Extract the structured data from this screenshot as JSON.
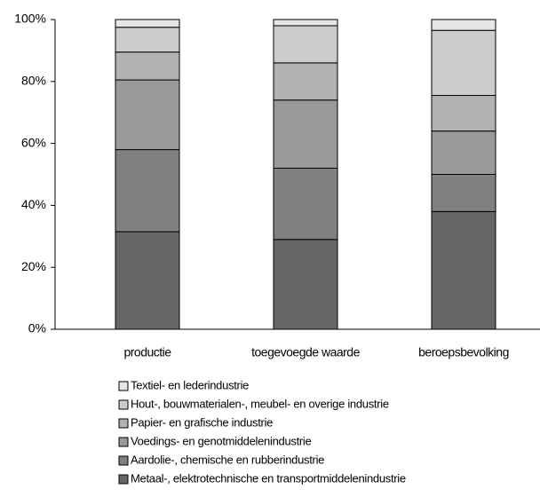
{
  "chart_data": {
    "type": "stacked_bar",
    "categories": [
      "productie",
      "toegevoegde waarde",
      "beroepsbevolking"
    ],
    "series": [
      {
        "name": "Metaal-, elektrotechnische en transportmiddelenindustrie",
        "color": "#666666",
        "values": [
          31.5,
          29,
          38
        ]
      },
      {
        "name": "Aardolie-, chemische en rubberindustrie",
        "color": "#808080",
        "values": [
          26.5,
          23,
          12
        ]
      },
      {
        "name": "Voedings- en genotmiddelenindustrie",
        "color": "#999999",
        "values": [
          22.5,
          22,
          14
        ]
      },
      {
        "name": "Papier- en grafische industrie",
        "color": "#b2b2b2",
        "values": [
          9,
          12,
          11.5
        ]
      },
      {
        "name": "Hout-, bouwmaterialen-, meubel- en overige industrie",
        "color": "#cccccc",
        "values": [
          8,
          12,
          21
        ]
      },
      {
        "name": "Textiel- en lederindustrie",
        "color": "#e6e6e6",
        "values": [
          2.5,
          2,
          3.5
        ]
      }
    ],
    "ylim": [
      0,
      100
    ],
    "yticks": [
      {
        "value": 0,
        "label": "0%"
      },
      {
        "value": 20,
        "label": "20%"
      },
      {
        "value": 40,
        "label": "40%"
      },
      {
        "value": 60,
        "label": "60%"
      },
      {
        "value": 80,
        "label": "80%"
      },
      {
        "value": 100,
        "label": "100%"
      }
    ],
    "grid": false
  }
}
